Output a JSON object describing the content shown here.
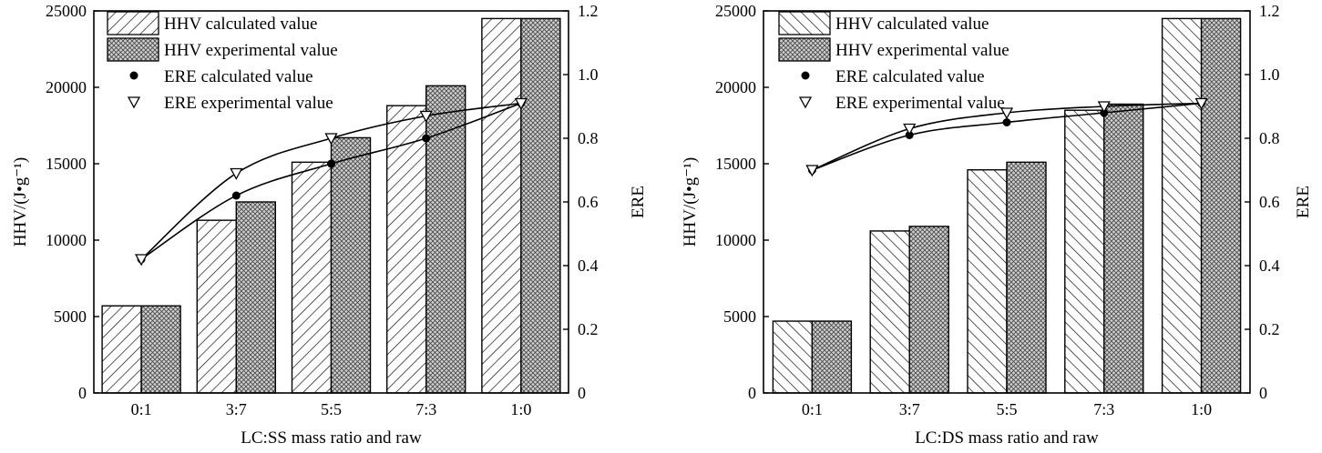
{
  "chart_data": [
    {
      "type": "bar",
      "categories": [
        "0:1",
        "3:7",
        "5:5",
        "7:3",
        "1:0"
      ],
      "xlabel": "LC:SS mass ratio and raw",
      "ylabel": "HHV/(J•g⁻¹)",
      "y2label": "ERE",
      "ylim": [
        0,
        25000
      ],
      "yticks": [
        0,
        5000,
        10000,
        15000,
        20000,
        25000
      ],
      "y2lim": [
        0,
        1.2
      ],
      "y2ticks": [
        "0",
        "0.2",
        "0.4",
        "0.6",
        "0.8",
        "1.0",
        "1.2"
      ],
      "legend_position": "top-left",
      "series": [
        {
          "name": "HHV calculated value",
          "axis": "left",
          "kind": "bar",
          "pattern": "hatch-forward",
          "values": [
            5700,
            11300,
            15100,
            18800,
            24500
          ]
        },
        {
          "name": "HHV experimental value",
          "axis": "left",
          "kind": "bar",
          "pattern": "crosshatch",
          "values": [
            5700,
            12500,
            16700,
            20100,
            24500
          ]
        },
        {
          "name": "ERE calculated value",
          "axis": "right",
          "kind": "line-marker",
          "marker": "dot",
          "values": [
            0.42,
            0.62,
            0.72,
            0.8,
            0.91
          ]
        },
        {
          "name": "ERE experimental value",
          "axis": "right",
          "kind": "line-marker",
          "marker": "triangle",
          "values": [
            0.42,
            0.69,
            0.8,
            0.87,
            0.91
          ]
        }
      ]
    },
    {
      "type": "bar",
      "categories": [
        "0:1",
        "3:7",
        "5:5",
        "7:3",
        "1:0"
      ],
      "xlabel": "LC:DS mass ratio and raw",
      "ylabel": "HHV/(J•g⁻¹)",
      "y2label": "ERE",
      "ylim": [
        0,
        25000
      ],
      "yticks": [
        0,
        5000,
        10000,
        15000,
        20000,
        25000
      ],
      "y2lim": [
        0,
        1.2
      ],
      "y2ticks": [
        "0",
        "0.2",
        "0.4",
        "0.6",
        "0.8",
        "1.0",
        "1.2"
      ],
      "legend_position": "top-left",
      "series": [
        {
          "name": "HHV calculated value",
          "axis": "left",
          "kind": "bar",
          "pattern": "hatch-back",
          "values": [
            4700,
            10600,
            14600,
            18500,
            24500
          ]
        },
        {
          "name": "HHV experimental value",
          "axis": "left",
          "kind": "bar",
          "pattern": "crosshatch",
          "values": [
            4700,
            10900,
            15100,
            18900,
            24500
          ]
        },
        {
          "name": "ERE calculated value",
          "axis": "right",
          "kind": "line-marker",
          "marker": "dot",
          "values": [
            0.7,
            0.81,
            0.85,
            0.88,
            0.91
          ]
        },
        {
          "name": "ERE experimental value",
          "axis": "right",
          "kind": "line-marker",
          "marker": "triangle",
          "values": [
            0.7,
            0.83,
            0.88,
            0.9,
            0.91
          ]
        }
      ]
    }
  ]
}
